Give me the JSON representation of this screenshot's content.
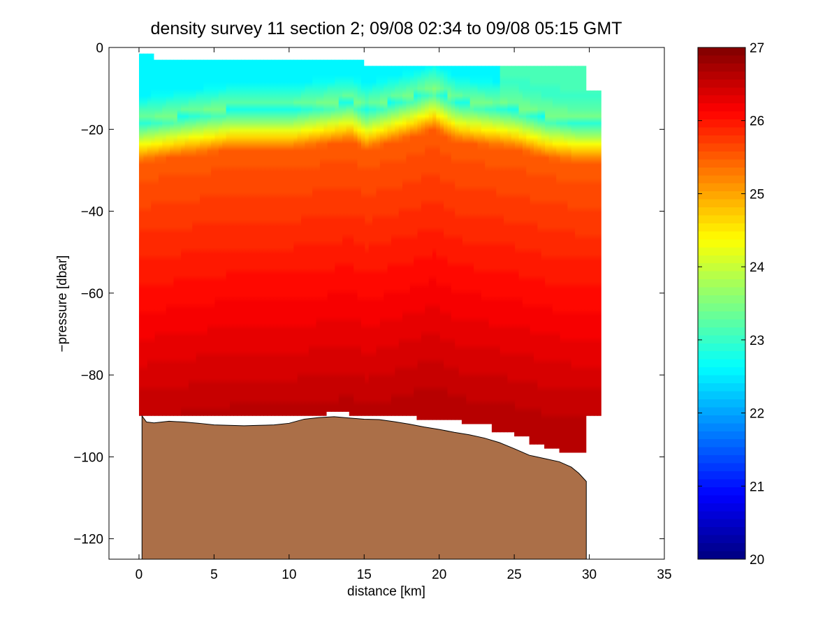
{
  "chart_data": {
    "type": "heatmap",
    "title": "density survey 11 section 2; 09/08 02:34 to 09/08 05:15 GMT",
    "xlabel": "distance [km]",
    "ylabel": "−pressure [dbar]",
    "xlim": [
      -2,
      35
    ],
    "ylim": [
      -125,
      0
    ],
    "x_ticks": [
      0,
      5,
      10,
      15,
      20,
      25,
      30,
      35
    ],
    "y_ticks": [
      0,
      -20,
      -40,
      -60,
      -80,
      -100,
      -120
    ],
    "x_tick_labels": [
      "0",
      "5",
      "10",
      "15",
      "20",
      "25",
      "30",
      "35"
    ],
    "y_tick_labels": [
      "0",
      "−20",
      "−40",
      "−60",
      "−80",
      "−100",
      "−120"
    ],
    "colorbar": {
      "range": [
        20,
        27
      ],
      "ticks": [
        20,
        21,
        22,
        23,
        24,
        25,
        26,
        27
      ],
      "tick_labels": [
        "20",
        "21",
        "22",
        "23",
        "24",
        "25",
        "26",
        "27"
      ],
      "colormap": "jet",
      "levels": 64
    },
    "grid": false,
    "density_field": {
      "pycnocline_depth": {
        "distance_km": [
          0,
          2,
          4,
          6,
          8,
          10,
          12,
          14,
          15,
          16,
          18,
          19.5,
          21,
          23,
          25,
          27,
          29,
          31
        ],
        "pressure_dbar": [
          -24,
          -23,
          -22,
          -21,
          -21,
          -21,
          -20,
          -19,
          -21,
          -20,
          -18,
          -16,
          -19,
          -20,
          -21,
          -23,
          -24,
          -24
        ]
      },
      "surface_value": 22.6,
      "deep_value": 26.6,
      "data_bottom": {
        "distance_km": [
          0,
          12.5,
          12.5,
          14,
          14,
          18.5,
          18.5,
          21.5,
          21.5,
          23.5,
          23.5,
          25,
          25,
          26,
          26,
          27,
          27,
          28,
          28,
          29.8,
          29.8,
          30.8
        ],
        "pressure_dbar": [
          -90,
          -90,
          -89,
          -89,
          -90,
          -90,
          -91,
          -91,
          -92,
          -92,
          -94,
          -94,
          -95,
          -95,
          -97,
          -97,
          -98,
          -98,
          -99,
          -99,
          -90,
          -90
        ]
      },
      "data_top": {
        "distance_km": [
          0,
          1,
          1,
          15,
          15,
          29.8,
          29.8,
          30.8
        ],
        "pressure_dbar": [
          -1.5,
          -1.5,
          -3,
          -3,
          -4.5,
          -4.5,
          -10.5,
          -10.5
        ]
      }
    },
    "bathymetry": {
      "color": "#ab6f48",
      "distance_km": [
        0.2,
        0.5,
        1,
        2,
        3,
        4,
        5,
        6,
        7,
        8,
        9,
        10,
        11,
        12,
        13,
        14,
        15,
        16,
        17,
        18,
        19,
        20,
        21,
        22,
        23,
        24,
        25,
        26,
        27,
        28,
        28.8,
        29.3,
        29.6,
        29.8
      ],
      "pressure_dbar": [
        -90,
        -91.5,
        -91.7,
        -91.3,
        -91.5,
        -91.8,
        -92.2,
        -92.3,
        -92.4,
        -92.3,
        -92.2,
        -91.8,
        -90.8,
        -90.4,
        -90.2,
        -90.5,
        -90.8,
        -90.9,
        -91.4,
        -92,
        -92.7,
        -93.3,
        -94,
        -94.6,
        -95.4,
        -96.5,
        -98,
        -99.6,
        -100.4,
        -101.2,
        -102.5,
        -104,
        -105.2,
        -106
      ]
    }
  }
}
